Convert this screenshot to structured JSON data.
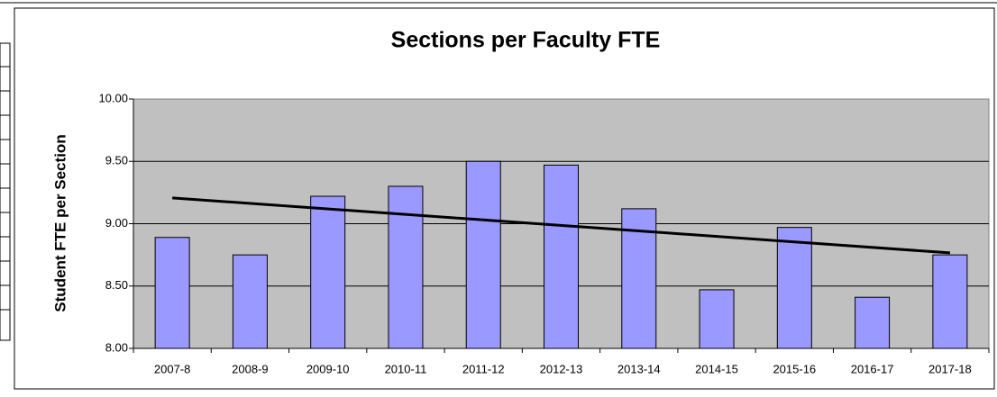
{
  "chart_data": {
    "type": "bar",
    "title": "Sections per Faculty FTE",
    "y_label": "Student FTE per Section",
    "categories": [
      "2007-8",
      "2008-9",
      "2009-10",
      "2010-11",
      "2011-12",
      "2012-13",
      "2013-14",
      "2014-15",
      "2015-16",
      "2016-17",
      "2017-18"
    ],
    "values": [
      8.89,
      8.75,
      9.22,
      9.3,
      9.5,
      9.47,
      9.12,
      8.47,
      8.97,
      8.41,
      8.75
    ],
    "color": "#9999ff",
    "trendline": true,
    "grid": true,
    "ylim": [
      8,
      10
    ],
    "yticks": [
      {
        "value": 8,
        "label": "8.00"
      },
      {
        "value": 8.5,
        "label": "8.50"
      },
      {
        "value": 9,
        "label": "9.00"
      },
      {
        "value": 9.5,
        "label": "9.50"
      },
      {
        "value": 10,
        "label": "10.00"
      }
    ]
  }
}
